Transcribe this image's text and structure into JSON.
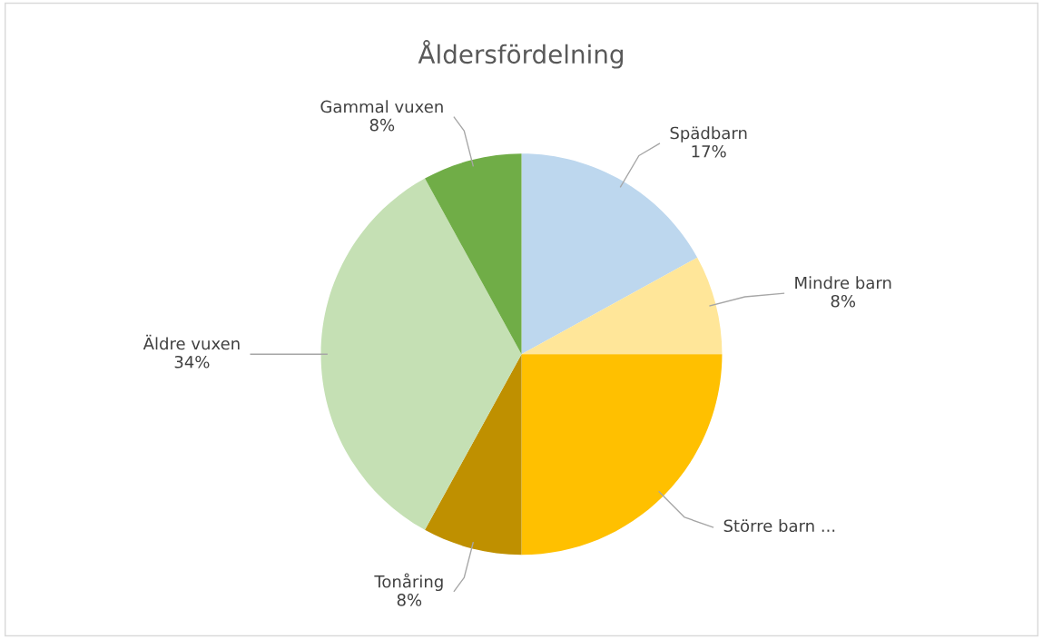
{
  "chart_data": {
    "type": "pie",
    "title": "Åldersfördelning",
    "categories": [
      "Spädbarn",
      "Mindre barn",
      "Större barn ...",
      "Tonåring",
      "Äldre vuxen",
      "Gammal vuxen"
    ],
    "values": [
      17,
      8,
      25,
      8,
      34,
      8
    ],
    "value_labels": [
      "17%",
      "8%",
      null,
      "8%",
      "34%",
      "8%"
    ],
    "colors": [
      "#bdd7ee",
      "#ffe699",
      "#ffc000",
      "#bf9000",
      "#c5e0b4",
      "#70ad47"
    ],
    "legend": false
  }
}
